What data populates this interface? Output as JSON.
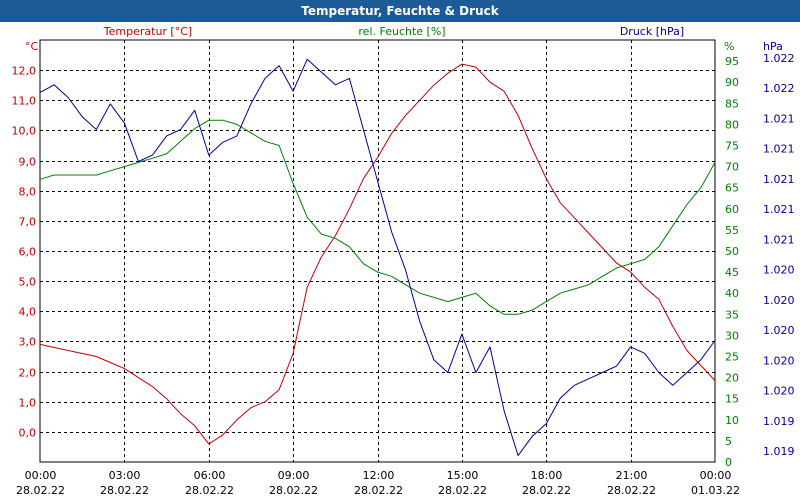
{
  "title": "Temperatur, Feuchte & Druck",
  "chart_data": {
    "type": "line",
    "title": "Temperatur, Feuchte & Druck",
    "x": {
      "range_hours": [
        0,
        24
      ],
      "tick_hours": [
        0,
        3,
        6,
        9,
        12,
        15,
        18,
        21,
        24
      ],
      "tick_time_labels": [
        "00:00",
        "03:00",
        "06:00",
        "09:00",
        "12:00",
        "15:00",
        "18:00",
        "21:00",
        "00:00"
      ],
      "tick_date_labels": [
        "28.02.22",
        "28.02.22",
        "28.02.22",
        "28.02.22",
        "28.02.22",
        "28.02.22",
        "28.02.22",
        "28.02.22",
        "01.03.22"
      ]
    },
    "axes": {
      "temperature": {
        "unit_label": "°C",
        "series_label": "Temperatur [°C]",
        "color": "#c00000",
        "ylim": [
          -1,
          13
        ],
        "ticks": [
          0,
          1,
          2,
          3,
          4,
          5,
          6,
          7,
          8,
          9,
          10,
          11,
          12
        ],
        "tick_labels": [
          "0,0",
          "1,0",
          "2,0",
          "3,0",
          "4,0",
          "5,0",
          "6,0",
          "7,0",
          "8,0",
          "9,0",
          "10,0",
          "11,0",
          "12,0"
        ]
      },
      "humidity": {
        "unit_label": "%",
        "series_label": "rel. Feuchte [%]",
        "color": "#008000",
        "ylim": [
          0,
          100
        ],
        "ticks": [
          0,
          5,
          10,
          15,
          20,
          25,
          30,
          35,
          40,
          45,
          50,
          55,
          60,
          65,
          70,
          75,
          80,
          85,
          90,
          95
        ],
        "tick_labels": [
          "0",
          "5",
          "10",
          "15",
          "20",
          "25",
          "30",
          "35",
          "40",
          "45",
          "50",
          "55",
          "60",
          "65",
          "70",
          "75",
          "80",
          "85",
          "90",
          "95"
        ]
      },
      "pressure": {
        "unit_label": "hPa",
        "series_label": "Druck [hPa]",
        "color": "#000099",
        "ylim": [
          1019,
          1022.3
        ],
        "tick_labels": [
          "1.022",
          "1.022",
          "1.021",
          "1.021",
          "1.021",
          "1.021",
          "1.021",
          "1.020",
          "1.020",
          "1.020",
          "1.020",
          "1.020",
          "1.019",
          "1.019"
        ]
      }
    },
    "series": [
      {
        "name": "Temperatur [°C]",
        "axis": "temperature",
        "color": "#c00000",
        "x": [
          0,
          0.5,
          1,
          1.5,
          2,
          2.5,
          3,
          3.5,
          4,
          4.5,
          5,
          5.5,
          6,
          6.5,
          7,
          7.5,
          8,
          8.5,
          9,
          9.5,
          10,
          10.5,
          11,
          11.5,
          12,
          12.5,
          13,
          13.5,
          14,
          14.5,
          15,
          15.5,
          16,
          16.5,
          17,
          17.5,
          18,
          18.5,
          19,
          19.5,
          20,
          20.5,
          21,
          21.5,
          22,
          22.5,
          23,
          23.5,
          24
        ],
        "values": [
          2.9,
          2.8,
          2.7,
          2.6,
          2.5,
          2.3,
          2.1,
          1.8,
          1.5,
          1.1,
          0.6,
          0.2,
          -0.4,
          -0.1,
          0.4,
          0.8,
          1.0,
          1.4,
          2.6,
          4.8,
          5.8,
          6.5,
          7.4,
          8.4,
          9.1,
          9.9,
          10.5,
          11.0,
          11.5,
          11.9,
          12.2,
          12.1,
          11.6,
          11.3,
          10.5,
          9.4,
          8.4,
          7.6,
          7.1,
          6.6,
          6.1,
          5.6,
          5.3,
          4.8,
          4.4,
          3.5,
          2.7,
          2.2,
          1.7
        ]
      },
      {
        "name": "rel. Feuchte [%]",
        "axis": "humidity",
        "color": "#008000",
        "x": [
          0,
          0.5,
          1,
          1.5,
          2,
          2.5,
          3,
          3.5,
          4,
          4.5,
          5,
          5.5,
          6,
          6.5,
          7,
          7.5,
          8,
          8.5,
          9,
          9.5,
          10,
          10.5,
          11,
          11.5,
          12,
          12.5,
          13,
          13.5,
          14,
          14.5,
          15,
          15.5,
          16,
          16.5,
          17,
          17.5,
          18,
          18.5,
          19,
          19.5,
          20,
          20.5,
          21,
          21.5,
          22,
          22.5,
          23,
          23.5,
          24
        ],
        "values": [
          67,
          68,
          68,
          68,
          68,
          69,
          70,
          71,
          72,
          73,
          76,
          79,
          81,
          81,
          80,
          78,
          76,
          75,
          66,
          58,
          54,
          53,
          51,
          47,
          45,
          44,
          42,
          40,
          39,
          38,
          39,
          40,
          37,
          35,
          35,
          36,
          38,
          40,
          41,
          42,
          44,
          46,
          47,
          48,
          51,
          56,
          61,
          65,
          71
        ]
      },
      {
        "name": "Druck [hPa]",
        "axis": "pressure",
        "color": "#000099",
        "x": [
          0,
          0.5,
          1,
          1.5,
          2,
          2.5,
          3,
          3.5,
          4,
          4.5,
          5,
          5.5,
          6,
          6.5,
          7,
          7.5,
          8,
          8.5,
          9,
          9.5,
          10,
          10.5,
          11,
          11.5,
          12,
          12.5,
          13,
          13.5,
          14,
          14.5,
          15,
          15.5,
          16,
          16.5,
          17,
          17.5,
          18,
          18.5,
          19,
          19.5,
          20,
          20.5,
          21,
          21.5,
          22,
          22.5,
          23,
          23.5,
          24
        ],
        "values": [
          1021.89,
          1021.95,
          1021.85,
          1021.7,
          1021.6,
          1021.8,
          1021.65,
          1021.35,
          1021.4,
          1021.55,
          1021.6,
          1021.75,
          1021.4,
          1021.5,
          1021.55,
          1021.8,
          1022.0,
          1022.1,
          1021.9,
          1022.15,
          1022.05,
          1021.95,
          1022.0,
          1021.6,
          1021.2,
          1020.8,
          1020.5,
          1020.1,
          1019.8,
          1019.7,
          1020.0,
          1019.7,
          1019.9,
          1019.4,
          1019.05,
          1019.2,
          1019.3,
          1019.5,
          1019.6,
          1019.65,
          1019.7,
          1019.75,
          1019.9,
          1019.85,
          1019.7,
          1019.6,
          1019.7,
          1019.8,
          1019.95
        ]
      }
    ]
  }
}
